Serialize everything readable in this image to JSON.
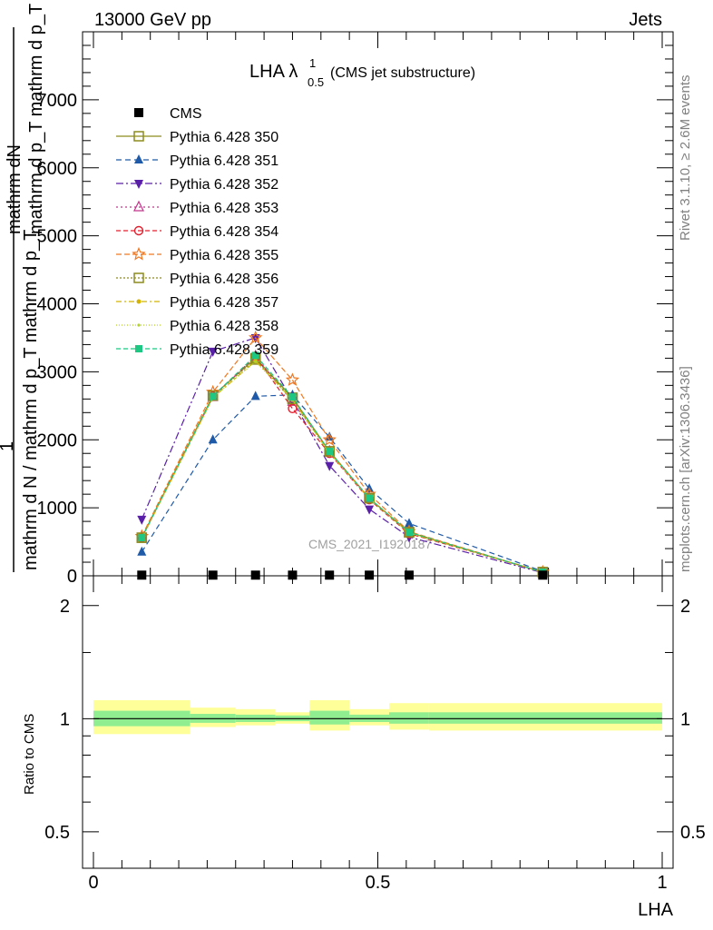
{
  "header": {
    "left": "13000 GeV pp",
    "right": "Jets"
  },
  "title": {
    "main": "LHA λ",
    "sup": "1",
    "sub": "0.5",
    "suffix": " (CMS jet substructure)"
  },
  "side_text": {
    "rivet": "Rivet 3.1.10, ≥ 2.6M events",
    "mcplots": "mcplots.cern.ch [arXiv:1306.3436]"
  },
  "watermark": "CMS_2021_I1920187",
  "ylabel_main": {
    "lines": [
      "mathrm dN",
      "mathrm d p_T mathrm d p_T mathrm d lambda",
      "1",
      "mathrm d N / mathrm d p_T mathrm d p_T"
    ]
  },
  "ylabel_ratio": "Ratio to CMS",
  "xlabel": "LHA",
  "colors": {
    "band_outer": "#ffff99",
    "band_inner": "#90ee90"
  },
  "chart_data": [
    {
      "type": "line",
      "name": "main",
      "xlim": [
        0,
        1
      ],
      "ylim": [
        0,
        8000
      ],
      "y_ticks": [
        {
          "v": 0,
          "label": "0"
        },
        {
          "v": 1000,
          "label": "1000"
        },
        {
          "v": 2000,
          "label": "2000"
        },
        {
          "v": 3000,
          "label": "3000"
        },
        {
          "v": 4000,
          "label": "4000"
        },
        {
          "v": 5000,
          "label": "5000"
        },
        {
          "v": 6000,
          "label": "6000"
        },
        {
          "v": 7000,
          "label": "7000"
        }
      ],
      "x": [
        0.085,
        0.21,
        0.285,
        0.35,
        0.415,
        0.485,
        0.555,
        0.79
      ],
      "cms": [
        10,
        10,
        10,
        10,
        10,
        10,
        10,
        10
      ],
      "series": [
        {
          "name": "Pythia 6.428 350",
          "color": "#8c8c1e",
          "marker": "square-open",
          "dash": "",
          "values": [
            560,
            2650,
            3200,
            2620,
            1830,
            1140,
            640,
            55
          ]
        },
        {
          "name": "Pythia 6.428 351",
          "color": "#1f5aa8",
          "marker": "triangle-up",
          "dash": "6,4",
          "values": [
            350,
            2000,
            2640,
            2660,
            2040,
            1280,
            770,
            65
          ]
        },
        {
          "name": "Pythia 6.428 352",
          "color": "#5a1fa8",
          "marker": "triangle-down",
          "dash": "8,3,2,3",
          "values": [
            830,
            3300,
            3500,
            2580,
            1620,
            980,
            570,
            45
          ]
        },
        {
          "name": "Pythia 6.428 353",
          "color": "#c0368c",
          "marker": "triangle-open",
          "dash": "2,3",
          "values": [
            570,
            2630,
            3230,
            2560,
            1830,
            1140,
            630,
            55
          ]
        },
        {
          "name": "Pythia 6.428 354",
          "color": "#e0202e",
          "marker": "circle-open",
          "dash": "5,3",
          "values": [
            560,
            2640,
            3230,
            2460,
            1800,
            1120,
            620,
            55
          ]
        },
        {
          "name": "Pythia 6.428 355",
          "color": "#f07820",
          "marker": "star-open",
          "dash": "6,3",
          "values": [
            580,
            2700,
            3500,
            2880,
            2000,
            1200,
            650,
            55
          ]
        },
        {
          "name": "Pythia 6.428 356",
          "color": "#8c8c1e",
          "marker": "square-open",
          "dash": "2,2",
          "values": [
            560,
            2650,
            3180,
            2600,
            1830,
            1140,
            640,
            55
          ]
        },
        {
          "name": "Pythia 6.428 357",
          "color": "#d4b400",
          "marker": "dot",
          "dash": "6,3,2,3",
          "values": [
            550,
            2620,
            3160,
            2590,
            1810,
            1140,
            630,
            55
          ]
        },
        {
          "name": "Pythia 6.428 358",
          "color": "#b4d22a",
          "marker": "dot-small",
          "dash": "1,2",
          "values": [
            550,
            2620,
            3150,
            2580,
            1800,
            1130,
            630,
            55
          ]
        },
        {
          "name": "Pythia 6.428 359",
          "color": "#1ec882",
          "marker": "square-filled",
          "dash": "5,3",
          "values": [
            560,
            2640,
            3240,
            2630,
            1830,
            1140,
            640,
            55
          ]
        }
      ]
    },
    {
      "type": "area",
      "name": "ratio",
      "xlim": [
        0,
        1
      ],
      "ylim": [
        0.4,
        2.4
      ],
      "log_y": true,
      "y_ticks": [
        {
          "v": 0.5,
          "label": "0.5"
        },
        {
          "v": 1,
          "label": "1"
        },
        {
          "v": 2,
          "label": "2"
        }
      ],
      "x_ticks": [
        {
          "v": 0,
          "label": "0"
        },
        {
          "v": 0.5,
          "label": "0.5"
        },
        {
          "v": 1,
          "label": "1"
        }
      ],
      "bins": [
        {
          "x0": 0.0,
          "x1": 0.17,
          "outer": [
            0.91,
            1.12
          ],
          "inner": [
            0.955,
            1.05
          ]
        },
        {
          "x0": 0.17,
          "x1": 0.25,
          "outer": [
            0.95,
            1.07
          ],
          "inner": [
            0.975,
            1.03
          ]
        },
        {
          "x0": 0.25,
          "x1": 0.32,
          "outer": [
            0.96,
            1.06
          ],
          "inner": [
            0.98,
            1.025
          ]
        },
        {
          "x0": 0.32,
          "x1": 0.38,
          "outer": [
            0.97,
            1.04
          ],
          "inner": [
            0.985,
            1.02
          ]
        },
        {
          "x0": 0.38,
          "x1": 0.45,
          "outer": [
            0.93,
            1.12
          ],
          "inner": [
            0.965,
            1.05
          ]
        },
        {
          "x0": 0.45,
          "x1": 0.52,
          "outer": [
            0.96,
            1.06
          ],
          "inner": [
            0.98,
            1.025
          ]
        },
        {
          "x0": 0.52,
          "x1": 0.59,
          "outer": [
            0.935,
            1.1
          ],
          "inner": [
            0.97,
            1.04
          ]
        },
        {
          "x0": 0.59,
          "x1": 1.0,
          "outer": [
            0.93,
            1.1
          ],
          "inner": [
            0.97,
            1.04
          ]
        }
      ]
    }
  ]
}
